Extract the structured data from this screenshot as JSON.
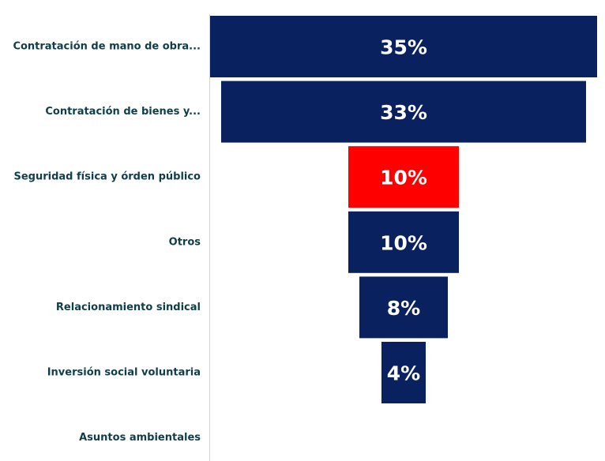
{
  "chart_data": {
    "type": "bar",
    "subtype": "funnel",
    "title": "",
    "xlabel": "",
    "ylabel": "",
    "categories": [
      "Contratación de mano de obra...",
      "Contratación de bienes y...",
      "Seguridad física y órden público",
      "Otros",
      "Relacionamiento sindical",
      "Inversión social voluntaria",
      "Asuntos ambientales"
    ],
    "values": [
      35,
      33,
      10,
      10,
      8,
      4,
      0
    ],
    "value_labels": [
      "35%",
      "33%",
      "10%",
      "10%",
      "8%",
      "4%",
      ""
    ],
    "unit": "%",
    "highlight_index": 2,
    "colors": {
      "bar": "#0a2160",
      "highlight": "#ff0000",
      "label_text": "#0f3d4a",
      "value_text": "#ffffff",
      "axis_line": "#c9d6dc"
    }
  }
}
